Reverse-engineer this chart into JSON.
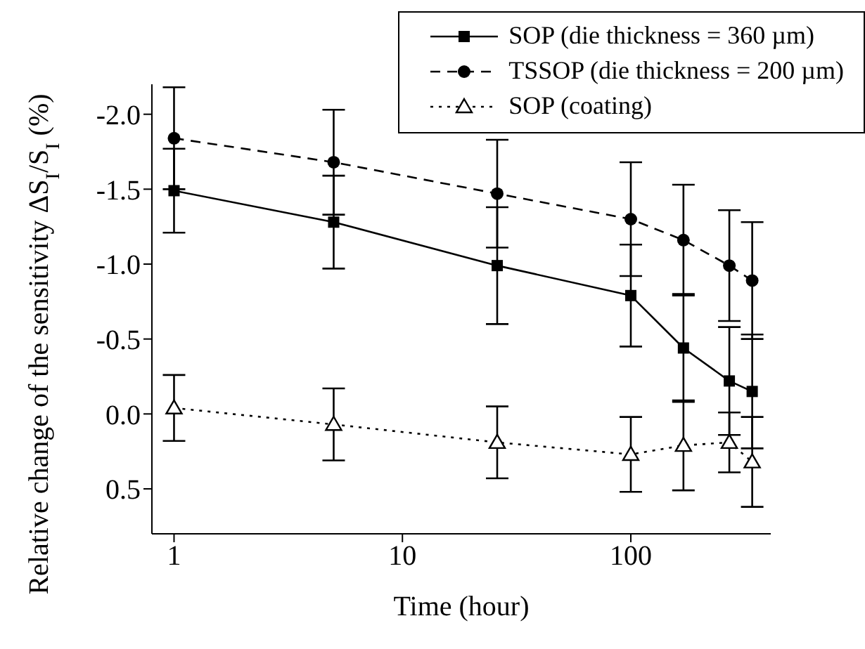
{
  "chart_data": {
    "type": "line",
    "xlabel": "Time (hour)",
    "ylabel": "Relative change of the sensitivity ΔS$_{I}$/S$_{I}$ (%)",
    "log": "x",
    "xlim": [
      0.8,
      410
    ],
    "xticks": [
      1,
      10,
      100
    ],
    "ylim": [
      0.8,
      -2.2
    ],
    "yticks": [
      {
        "value": -2,
        "label": "-2.0"
      },
      {
        "value": -1.5,
        "label": "-1.5"
      },
      {
        "value": -1,
        "label": "-1.0"
      },
      {
        "value": -0.5,
        "label": "-0.5"
      },
      {
        "value": 0,
        "label": "0.0"
      },
      {
        "value": 0.5,
        "label": "0.5"
      }
    ],
    "legend": "top right",
    "series": [
      {
        "name": "SOP (die thickness = 360 µm)",
        "color": "#000000",
        "marker": "square",
        "line_style": "solid",
        "x": [
          1,
          5,
          26,
          100,
          170,
          270,
          340
        ],
        "values": [
          -1.49,
          -1.28,
          -0.99,
          -0.79,
          -0.44,
          -0.22,
          -0.15
        ],
        "errors": [
          0.28,
          0.31,
          0.39,
          0.34,
          0.36,
          0.36,
          0.38
        ]
      },
      {
        "name": "TSSOP (die thickness = 200 µm)",
        "color": "#000000",
        "marker": "circle",
        "line_style": "dashed",
        "x": [
          1,
          5,
          26,
          100,
          170,
          270,
          340
        ],
        "values": [
          -1.84,
          -1.68,
          -1.47,
          -1.3,
          -1.16,
          -0.99,
          -0.89
        ],
        "errors": [
          0.34,
          0.35,
          0.36,
          0.38,
          0.37,
          0.37,
          0.39
        ]
      },
      {
        "name": "SOP (coating)",
        "color": "#000000",
        "marker": "triangle",
        "line_style": "dotted",
        "x": [
          1,
          5,
          26,
          100,
          170,
          270,
          340
        ],
        "values": [
          -0.04,
          0.07,
          0.19,
          0.27,
          0.21,
          0.19,
          0.32
        ],
        "errors": [
          0.22,
          0.24,
          0.24,
          0.25,
          0.3,
          0.2,
          0.3
        ]
      }
    ]
  }
}
